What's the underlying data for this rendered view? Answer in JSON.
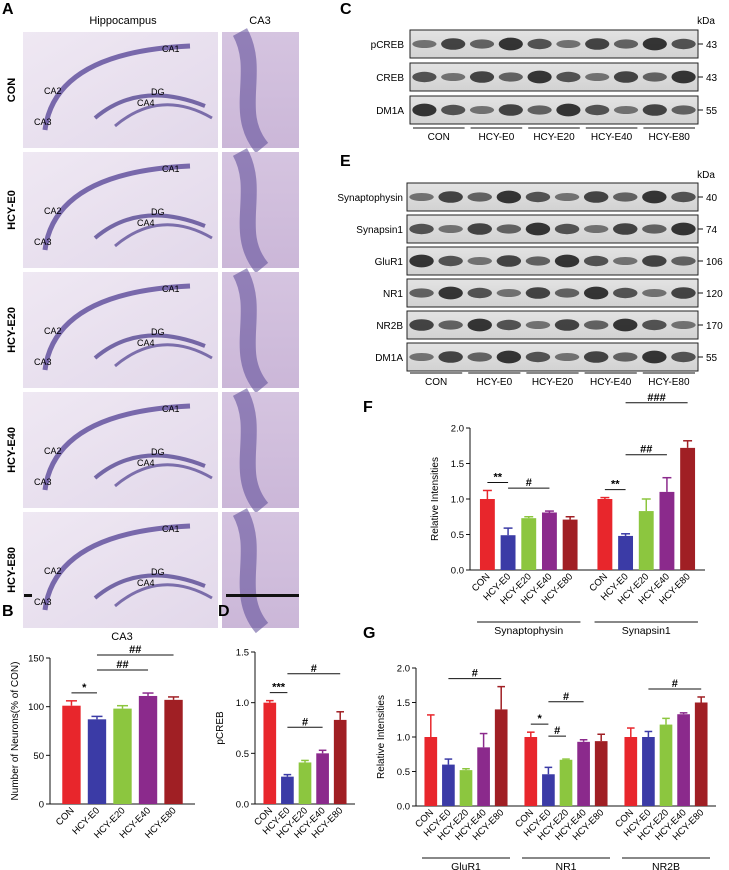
{
  "colors": {
    "con": "#e8262c",
    "e0": "#3b3ba6",
    "e20": "#8cc63f",
    "e40": "#8b2a8c",
    "e80": "#a01f24"
  },
  "panel_A": {
    "letter": "A",
    "col_titles": [
      "Hippocampus",
      "CA3"
    ],
    "rows": [
      "CON",
      "HCY-E0",
      "HCY-E20",
      "HCY-E40",
      "HCY-E80"
    ],
    "region_labels": [
      "CA1",
      "CA2",
      "CA3",
      "CA4",
      "DG"
    ]
  },
  "panel_C": {
    "letter": "C",
    "unit": "kDa",
    "bands": [
      {
        "name": "pCREB",
        "kda": "43"
      },
      {
        "name": "CREB",
        "kda": "43"
      },
      {
        "name": "DM1A",
        "kda": "55"
      }
    ],
    "groups": [
      "CON",
      "HCY-E0",
      "HCY-E20",
      "HCY-E40",
      "HCY-E80"
    ]
  },
  "panel_E": {
    "letter": "E",
    "unit": "kDa",
    "bands": [
      {
        "name": "Synaptophysin",
        "kda": "40"
      },
      {
        "name": "Synapsin1",
        "kda": "74"
      },
      {
        "name": "GluR1",
        "kda": "106"
      },
      {
        "name": "NR1",
        "kda": "120"
      },
      {
        "name": "NR2B",
        "kda": "170"
      },
      {
        "name": "DM1A",
        "kda": "55"
      }
    ],
    "groups": [
      "CON",
      "HCY-E0",
      "HCY-E20",
      "HCY-E40",
      "HCY-E80"
    ]
  },
  "chart_data": [
    {
      "panel": "B",
      "type": "bar",
      "title": "CA3",
      "ylabel": "Number of Neurons(% of CON)",
      "categories": [
        "CON",
        "HCY-E0",
        "HCY-E20",
        "HCY-E40",
        "HCY-E80"
      ],
      "values": [
        101,
        87,
        98,
        111,
        107
      ],
      "errors": [
        5,
        3,
        3,
        3,
        3
      ],
      "ylim": [
        0,
        150
      ],
      "yticks": [
        0,
        50,
        100,
        150
      ],
      "annotations": [
        {
          "label": "*",
          "from": 0,
          "to": 1
        },
        {
          "label": "##",
          "from": 1,
          "to": 3
        },
        {
          "label": "##",
          "from": 1,
          "to": 4
        }
      ]
    },
    {
      "panel": "D",
      "type": "bar",
      "ylabel": "pCREB",
      "categories": [
        "CON",
        "HCY-E0",
        "HCY-E20",
        "HCY-E40",
        "HCY-E80"
      ],
      "values": [
        1.0,
        0.27,
        0.41,
        0.5,
        0.83
      ],
      "errors": [
        0.02,
        0.02,
        0.02,
        0.03,
        0.08
      ],
      "ylim": [
        0,
        1.5
      ],
      "yticks": [
        "0.0",
        "0.5",
        "1.0",
        "1.5"
      ],
      "annotations": [
        {
          "label": "***",
          "from": 0,
          "to": 1
        },
        {
          "label": "#",
          "from": 1,
          "to": 3
        },
        {
          "label": "#",
          "from": 1,
          "to": 4
        }
      ]
    },
    {
      "panel": "F",
      "type": "bar",
      "ylabel": "Relative Intensities",
      "ylim": [
        0,
        2.0
      ],
      "yticks": [
        "0.0",
        "0.5",
        "1.0",
        "1.5",
        "2.0"
      ],
      "groups": [
        {
          "name": "Synaptophysin",
          "categories": [
            "CON",
            "HCY-E0",
            "HCY-E20",
            "HCY-E40",
            "HCY-E80"
          ],
          "values": [
            1.0,
            0.49,
            0.73,
            0.81,
            0.71
          ],
          "errors": [
            0.12,
            0.1,
            0.02,
            0.02,
            0.04
          ]
        },
        {
          "name": "Synapsin1",
          "categories": [
            "CON",
            "HCY-E0",
            "HCY-E20",
            "HCY-E40",
            "HCY-E80"
          ],
          "values": [
            1.0,
            0.48,
            0.83,
            1.1,
            1.72
          ],
          "errors": [
            0.02,
            0.03,
            0.17,
            0.2,
            0.1
          ]
        }
      ],
      "annotations": [
        {
          "label": "**",
          "group": 0,
          "from": 0,
          "to": 1
        },
        {
          "label": "#",
          "group": 0,
          "from": 1,
          "to": 3
        },
        {
          "label": "**",
          "group": 1,
          "from": 0,
          "to": 1
        },
        {
          "label": "##",
          "group": 1,
          "from": 1,
          "to": 3
        },
        {
          "label": "###",
          "group": 1,
          "from": 1,
          "to": 4
        }
      ]
    },
    {
      "panel": "G",
      "type": "bar",
      "ylabel": "Relative Intensities",
      "ylim": [
        0,
        2.0
      ],
      "yticks": [
        "0.0",
        "0.5",
        "1.0",
        "1.5",
        "2.0"
      ],
      "groups": [
        {
          "name": "GluR1",
          "categories": [
            "CON",
            "HCY-E0",
            "HCY-E20",
            "HCY-E40",
            "HCY-E80"
          ],
          "values": [
            1.0,
            0.6,
            0.52,
            0.85,
            1.4
          ],
          "errors": [
            0.32,
            0.08,
            0.02,
            0.2,
            0.33
          ]
        },
        {
          "name": "NR1",
          "categories": [
            "CON",
            "HCY-E0",
            "HCY-E20",
            "HCY-E40",
            "HCY-E80"
          ],
          "values": [
            1.0,
            0.46,
            0.67,
            0.93,
            0.94
          ],
          "errors": [
            0.07,
            0.1,
            0.01,
            0.03,
            0.1
          ]
        },
        {
          "name": "NR2B",
          "categories": [
            "CON",
            "HCY-E0",
            "HCY-E20",
            "HCY-E40",
            "HCY-E80"
          ],
          "values": [
            1.0,
            1.0,
            1.18,
            1.33,
            1.5
          ],
          "errors": [
            0.13,
            0.08,
            0.09,
            0.02,
            0.08
          ]
        }
      ],
      "annotations": [
        {
          "label": "#",
          "group": 0,
          "from": 1,
          "to": 4
        },
        {
          "label": "*",
          "group": 1,
          "from": 0,
          "to": 1
        },
        {
          "label": "#",
          "group": 1,
          "from": 1,
          "to": 2
        },
        {
          "label": "#",
          "group": 1,
          "from": 1,
          "to": 3
        },
        {
          "label": "#",
          "group": 2,
          "from": 1,
          "to": 4
        }
      ]
    }
  ]
}
